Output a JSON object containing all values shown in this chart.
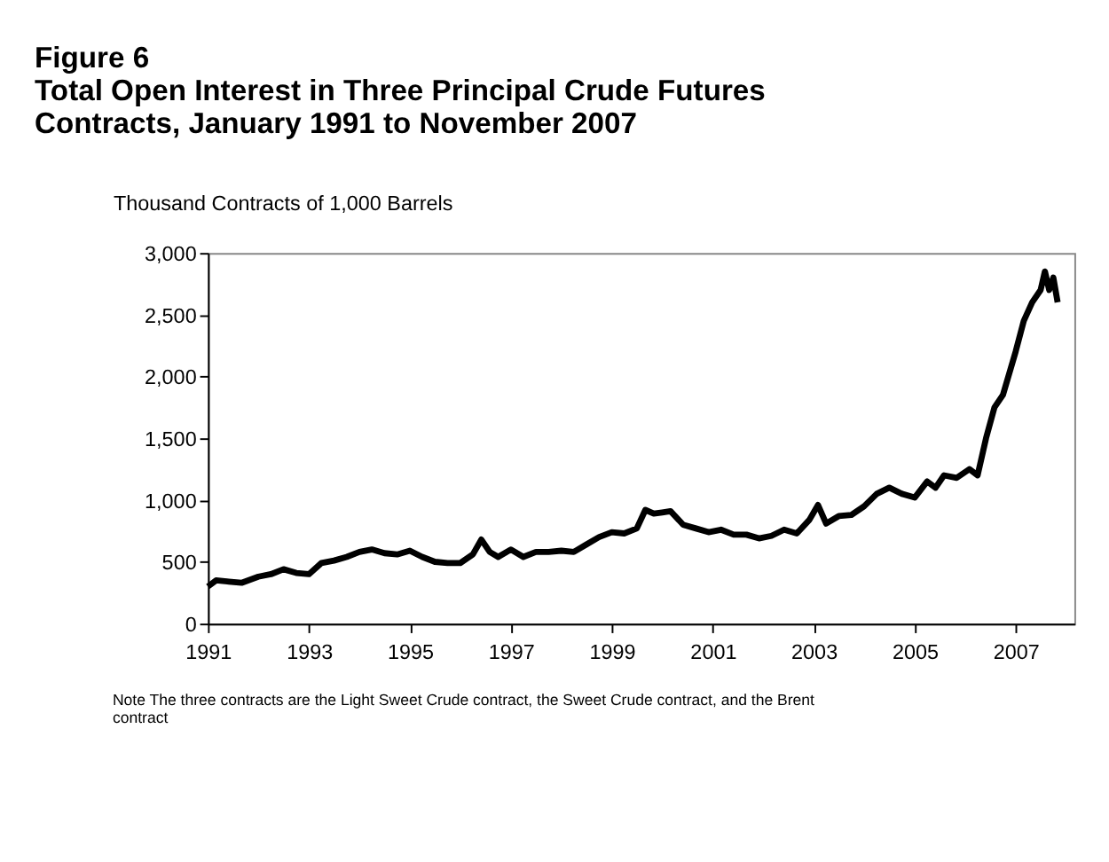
{
  "chart_data": {
    "type": "line",
    "title": "Figure 6",
    "subtitle": "Total Open Interest in Three Principal Crude Futures Contracts, January 1991 to November 2007",
    "ylabel": "Thousand Contracts of 1,000 Barrels",
    "annotations": [
      "Note The three contracts are the Light Sweet Crude contract, the Sweet Crude contract, and the Brent contract"
    ],
    "x": [
      "1991-01",
      "1991-03",
      "1991-06",
      "1991-09",
      "1992-01",
      "1992-04",
      "1992-07",
      "1992-10",
      "1993-01",
      "1993-04",
      "1993-07",
      "1993-10",
      "1994-01",
      "1994-04",
      "1994-07",
      "1994-10",
      "1995-01",
      "1995-04",
      "1995-07",
      "1995-10",
      "1996-01",
      "1996-04",
      "1996-06",
      "1996-08",
      "1996-10",
      "1997-01",
      "1997-04",
      "1997-07",
      "1997-10",
      "1998-01",
      "1998-04",
      "1998-07",
      "1998-10",
      "1999-01",
      "1999-04",
      "1999-07",
      "1999-09",
      "1999-11",
      "2000-01",
      "2000-03",
      "2000-06",
      "2000-09",
      "2000-12",
      "2001-03",
      "2001-06",
      "2001-09",
      "2001-12",
      "2002-03",
      "2002-06",
      "2002-09",
      "2002-12",
      "2003-02",
      "2003-04",
      "2003-07",
      "2003-10",
      "2004-01",
      "2004-04",
      "2004-07",
      "2004-10",
      "2005-01",
      "2005-04",
      "2005-06",
      "2005-08",
      "2005-11",
      "2006-02",
      "2006-04",
      "2006-06",
      "2006-08",
      "2006-10",
      "2007-01",
      "2007-03",
      "2007-05",
      "2007-07",
      "2007-08",
      "2007-09",
      "2007-10",
      "2007-11"
    ],
    "series": [
      {
        "color": "#000000",
        "values": [
          300,
          350,
          340,
          330,
          380,
          400,
          440,
          410,
          400,
          490,
          510,
          540,
          580,
          600,
          570,
          560,
          590,
          540,
          500,
          490,
          490,
          560,
          680,
          580,
          540,
          600,
          540,
          580,
          580,
          590,
          580,
          640,
          700,
          740,
          730,
          770,
          920,
          890,
          900,
          910,
          800,
          770,
          740,
          760,
          720,
          720,
          690,
          710,
          760,
          730,
          840,
          960,
          810,
          870,
          880,
          950,
          1050,
          1100,
          1050,
          1020,
          1150,
          1100,
          1200,
          1180,
          1250,
          1200,
          1500,
          1750,
          1850,
          2200,
          2450,
          2600,
          2700,
          2850,
          2700,
          2800,
          2600
        ]
      }
    ],
    "xlim": [
      "1991-01",
      "2008-03"
    ],
    "xticks": [
      {
        "value": "1991",
        "label": "1991"
      },
      {
        "value": "1993",
        "label": "1993"
      },
      {
        "value": "1995",
        "label": "1995"
      },
      {
        "value": "1997",
        "label": "1997"
      },
      {
        "value": "1999",
        "label": "1999"
      },
      {
        "value": "2001",
        "label": "2001"
      },
      {
        "value": "2003",
        "label": "2003"
      },
      {
        "value": "2005",
        "label": "2005"
      },
      {
        "value": "2007",
        "label": "2007"
      }
    ],
    "ylim": [
      0,
      3000
    ],
    "yticks": [
      {
        "value": 0,
        "label": "0"
      },
      {
        "value": 500,
        "label": "500"
      },
      {
        "value": 1000,
        "label": "1,000"
      },
      {
        "value": 1500,
        "label": "1,500"
      },
      {
        "value": 2000,
        "label": "2,000"
      },
      {
        "value": 2500,
        "label": "2,500"
      },
      {
        "value": 3000,
        "label": "3,000"
      }
    ],
    "grid": false,
    "legend": false,
    "marker": "none",
    "line_style": "solid"
  }
}
